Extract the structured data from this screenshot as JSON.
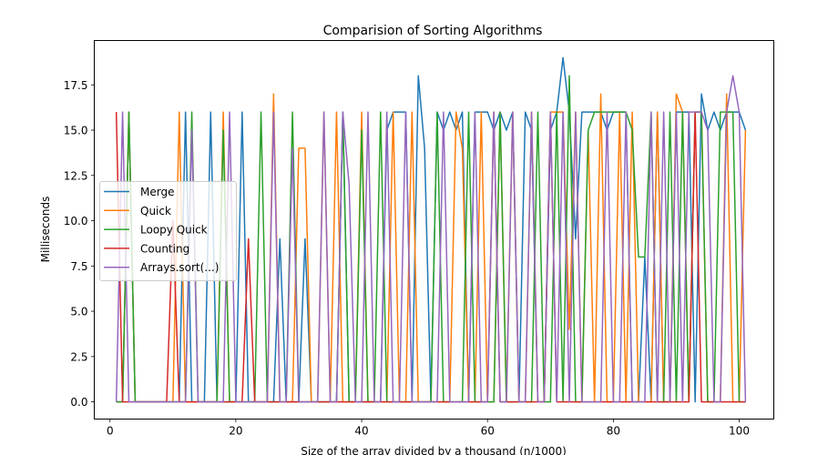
{
  "chart_data": {
    "type": "line",
    "title": "Comparision of Sorting Algorithms",
    "xlabel": "Size of the array divided by a thousand (n/1000)",
    "ylabel": "Milliseconds",
    "xlim": [
      -2.5,
      105.5
    ],
    "ylim": [
      -0.95,
      19.95
    ],
    "x_ticks": [
      0,
      20,
      40,
      60,
      80,
      100
    ],
    "y_ticks": [
      0.0,
      2.5,
      5.0,
      7.5,
      10.0,
      12.5,
      15.0,
      17.5
    ],
    "x_tick_labels": [
      "0",
      "20",
      "40",
      "60",
      "80",
      "100"
    ],
    "y_tick_labels": [
      "0.0",
      "2.5",
      "5.0",
      "7.5",
      "10.0",
      "12.5",
      "15.0",
      "17.5"
    ],
    "grid": false,
    "legend_position": "center-left",
    "x_start": 1,
    "x_end": 101,
    "series": [
      {
        "name": "Merge",
        "color": "#1f77b4",
        "values": [
          0,
          0,
          16,
          0,
          0,
          0,
          0,
          0,
          0,
          0,
          0,
          16,
          0,
          0,
          0,
          16,
          0,
          0,
          0,
          0,
          16,
          0,
          0,
          0,
          0,
          0,
          9,
          0,
          0,
          0,
          9,
          0,
          0,
          0,
          0,
          0,
          16,
          0,
          0,
          0,
          0,
          0,
          0,
          15,
          16,
          16,
          16,
          0,
          18,
          14,
          0,
          16,
          15,
          16,
          15,
          16,
          0,
          16,
          16,
          16,
          15,
          16,
          15,
          16,
          0,
          16,
          15,
          0,
          0,
          15,
          16,
          19,
          16,
          9,
          16,
          16,
          16,
          16,
          15,
          16,
          16,
          16,
          0,
          0,
          8,
          0,
          16,
          0,
          0,
          16,
          16,
          16,
          0,
          17,
          15,
          16,
          15,
          16,
          16,
          16,
          15
        ]
      },
      {
        "name": "Quick",
        "color": "#ff7f0e",
        "values": [
          0,
          0,
          16,
          0,
          0,
          0,
          0,
          0,
          0,
          0,
          16,
          0,
          0,
          0,
          0,
          0,
          0,
          16,
          0,
          0,
          0,
          0,
          0,
          0,
          0,
          17,
          0,
          0,
          0,
          14,
          14,
          0,
          0,
          16,
          0,
          16,
          0,
          0,
          0,
          16,
          0,
          0,
          0,
          0,
          16,
          0,
          0,
          16,
          0,
          0,
          0,
          0,
          0,
          0,
          16,
          14,
          0,
          0,
          16,
          0,
          0,
          16,
          0,
          16,
          0,
          0,
          16,
          0,
          0,
          16,
          16,
          16,
          4,
          16,
          0,
          15,
          0,
          17,
          0,
          0,
          16,
          0,
          16,
          0,
          0,
          0,
          16,
          0,
          0,
          17,
          16,
          0,
          16,
          16,
          0,
          0,
          0,
          17,
          0,
          0,
          15
        ]
      },
      {
        "name": "Loopy Quick",
        "color": "#2ca02c",
        "values": [
          0,
          0,
          16,
          0,
          0,
          0,
          0,
          0,
          0,
          0,
          0,
          0,
          16,
          0,
          0,
          0,
          0,
          15,
          0,
          0,
          0,
          0,
          0,
          16,
          0,
          0,
          0,
          0,
          16,
          0,
          0,
          0,
          0,
          0,
          0,
          0,
          16,
          0,
          0,
          15,
          0,
          0,
          16,
          0,
          0,
          0,
          0,
          0,
          0,
          0,
          0,
          16,
          0,
          0,
          0,
          0,
          16,
          0,
          0,
          0,
          0,
          16,
          0,
          0,
          0,
          0,
          0,
          16,
          0,
          0,
          16,
          0,
          18,
          0,
          0,
          15,
          16,
          16,
          16,
          16,
          16,
          16,
          15,
          8,
          8,
          16,
          0,
          0,
          16,
          0,
          16,
          0,
          16,
          16,
          0,
          0,
          16,
          16,
          16,
          0,
          0
        ]
      },
      {
        "name": "Counting",
        "color": "#d62728",
        "values": [
          16,
          0,
          0,
          0,
          0,
          0,
          0,
          0,
          0,
          10,
          0,
          0,
          0,
          0,
          0,
          0,
          0,
          0,
          0,
          0,
          0,
          9,
          0,
          0,
          0,
          0,
          0,
          0,
          0,
          0,
          0,
          0,
          0,
          0,
          0,
          0,
          0,
          0,
          0,
          0,
          0,
          0,
          0,
          0,
          0,
          0,
          0,
          0,
          0,
          0,
          0,
          0,
          0,
          0,
          0,
          0,
          0,
          0,
          0,
          0,
          16,
          0,
          0,
          0,
          0,
          0,
          0,
          0,
          0,
          16,
          0,
          0,
          0,
          0,
          0,
          0,
          0,
          0,
          0,
          0,
          0,
          0,
          0,
          0,
          0,
          0,
          0,
          0,
          0,
          0,
          0,
          0,
          16,
          0,
          0,
          0,
          0,
          0,
          0,
          0,
          0
        ]
      },
      {
        "name": "Arrays.sort(...)",
        "color": "#9467bd",
        "values": [
          0,
          16,
          0,
          0,
          0,
          0,
          0,
          0,
          0,
          0,
          0,
          0,
          15,
          0,
          0,
          0,
          0,
          0,
          16,
          0,
          0,
          0,
          0,
          0,
          0,
          16,
          0,
          0,
          14,
          0,
          0,
          0,
          0,
          16,
          0,
          0,
          16,
          12,
          0,
          0,
          16,
          0,
          0,
          16,
          0,
          0,
          16,
          0,
          0,
          0,
          0,
          0,
          16,
          0,
          0,
          0,
          0,
          16,
          0,
          0,
          16,
          0,
          0,
          16,
          0,
          0,
          16,
          0,
          0,
          16,
          0,
          16,
          0,
          16,
          0,
          0,
          0,
          0,
          16,
          0,
          0,
          16,
          0,
          0,
          0,
          16,
          0,
          16,
          0,
          16,
          0,
          16,
          16,
          16,
          15,
          0,
          0,
          16,
          18,
          16,
          0
        ]
      }
    ]
  }
}
